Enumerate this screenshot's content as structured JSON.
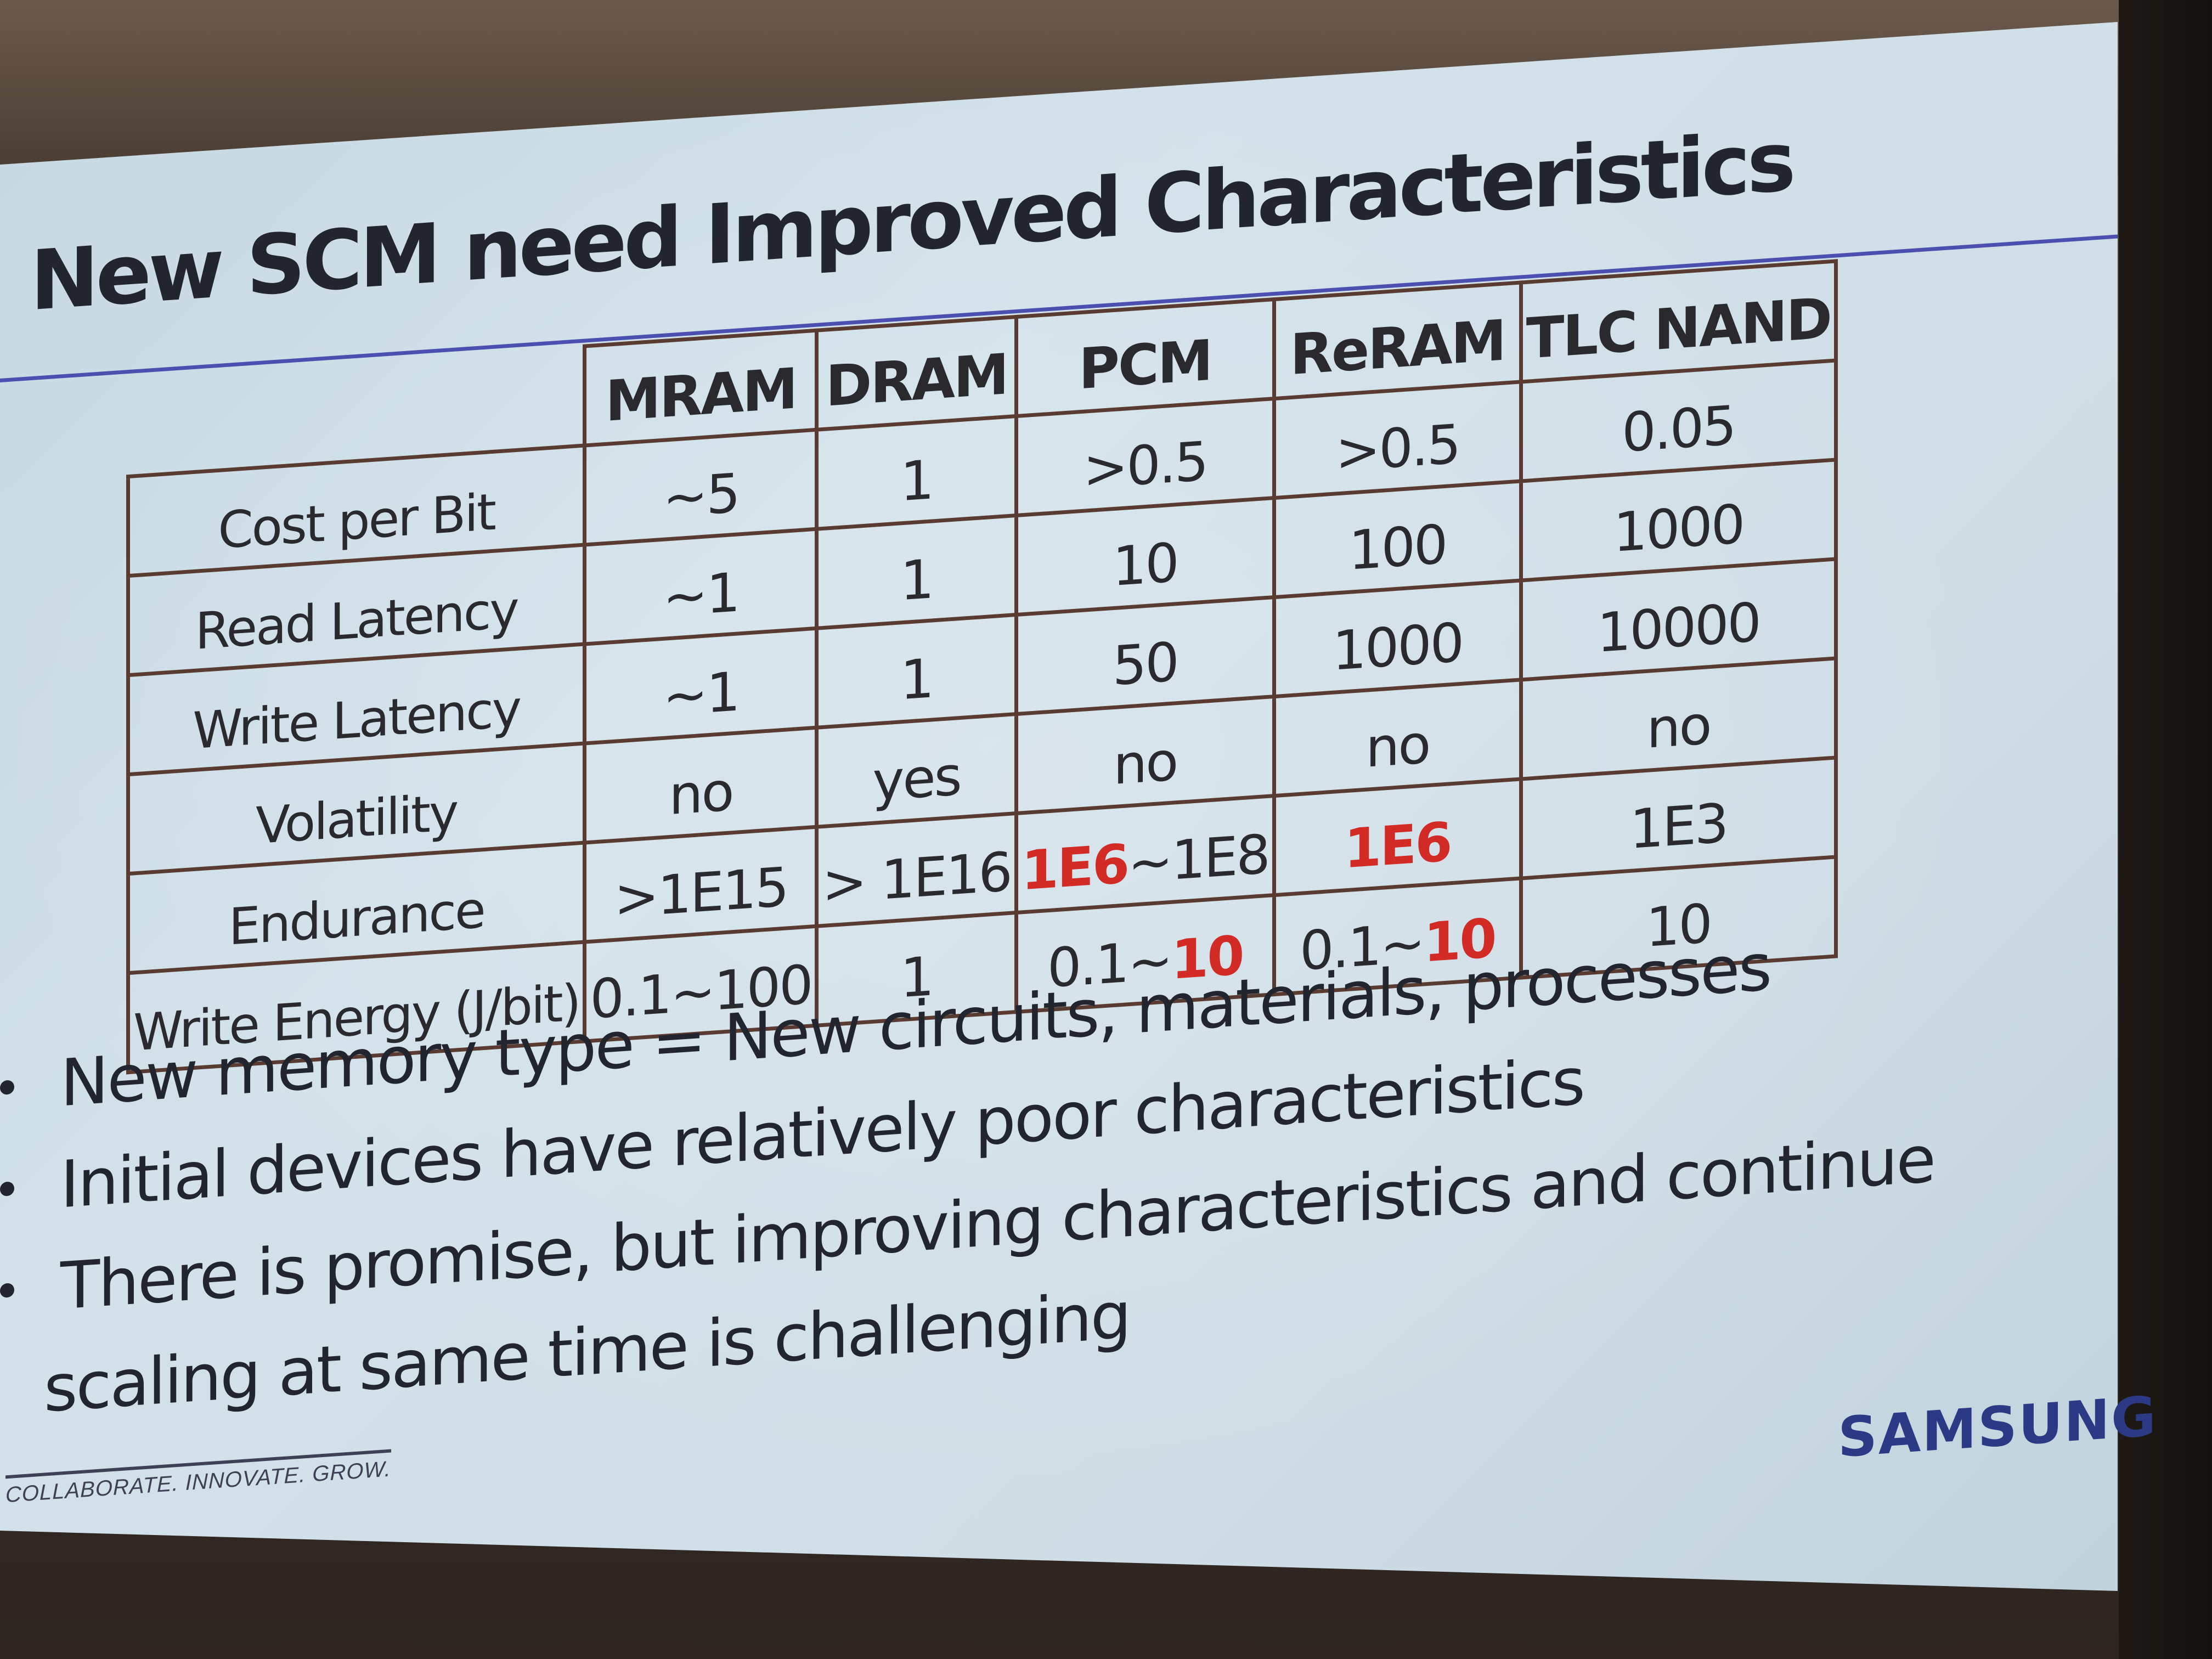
{
  "slide": {
    "title": "New SCM need Improved Characteristics",
    "table": {
      "columns": [
        "MRAM",
        "DRAM",
        "PCM",
        "ReRAM",
        "TLC NAND"
      ],
      "rows": [
        {
          "label": "Cost per Bit",
          "cells": [
            "~5",
            "1",
            ">0.5",
            ">0.5",
            "0.05"
          ]
        },
        {
          "label": "Read Latency",
          "cells": [
            "~1",
            "1",
            "10",
            "100",
            "1000"
          ]
        },
        {
          "label": "Write Latency",
          "cells": [
            "~1",
            "1",
            "50",
            "1000",
            "10000"
          ]
        },
        {
          "label": "Volatility",
          "cells": [
            "no",
            "yes",
            "no",
            "no",
            "no"
          ]
        },
        {
          "label": "Endurance",
          "cells": [
            ">1E15",
            "> 1E16",
            "1E6~1E8",
            "1E6",
            "1E3"
          ]
        },
        {
          "label": "Write Energy (J/bit)",
          "cells": [
            "0.1~100",
            "1",
            "0.1~10",
            "0.1~10",
            "10"
          ]
        }
      ],
      "rich_cells": {
        "pcm_endurance_red": "1E6",
        "pcm_endurance_rest": "~1E8",
        "reram_endurance_red": "1E6",
        "pcm_energy_prefix": "0.1~",
        "pcm_energy_red": "10",
        "reram_energy_prefix": "0.1~",
        "reram_energy_red": "10"
      },
      "highlight_color": "#d22b25"
    },
    "bullets": [
      "New memory type = New circuits, materials, processes",
      "Initial devices have relatively poor characteristics",
      "There is promise, but improving characteristics and continue",
      "scaling at same time is challenging"
    ],
    "footer_tagline": "COLLABORATE. INNOVATE. GROW.",
    "brand_logo": "SAMSUNG"
  },
  "colors": {
    "title_rule": "#4a4fb0",
    "table_border": "#5a3b32",
    "text": "#23252e",
    "brand": "#2c3a86"
  }
}
